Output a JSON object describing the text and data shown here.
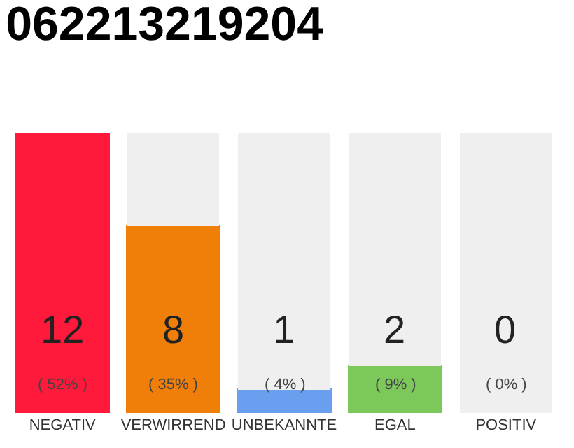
{
  "chart_data": {
    "type": "bar",
    "title": "062213219204",
    "categories": [
      "NEGATIV",
      "VERWIRREND",
      "UNBEKANNTE",
      "EGAL",
      "POSITIV"
    ],
    "stacked": true,
    "ylim": [
      0,
      12
    ],
    "tick_labels": "x",
    "series": [
      {
        "colors": [
          "#ff1a3c",
          "#f07f0a",
          "#6a9ff0",
          "#7dc85a",
          "#27a844"
        ],
        "values": [
          12,
          8,
          1,
          2,
          0
        ],
        "value_labels": [
          "12\n( 52% )",
          "8\n( 35% )",
          "1\n( 4% )",
          "2\n( 9% )",
          "0\n( 0% )"
        ]
      },
      {
        "color": "#efefef",
        "values": [
          0,
          4,
          11,
          10,
          12
        ]
      }
    ]
  }
}
